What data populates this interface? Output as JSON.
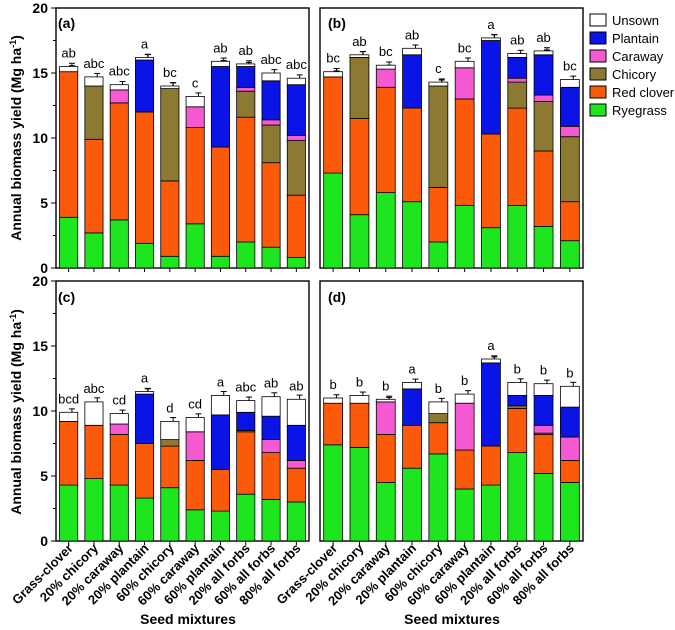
{
  "chart_data": {
    "type": "stacked-bar",
    "ylabel_prefix": "Annual biomass yield (Mg ha",
    "ylabel_sup": "-1",
    "ylabel_suffix": ")",
    "xlabel": "Seed mixtures",
    "ylim": [
      0,
      20
    ],
    "yticks": [
      "0",
      "5",
      "10",
      "15",
      "20"
    ],
    "categories": [
      "Grass-clover",
      "20% chicory",
      "20% caraway",
      "20% plantain",
      "60% chicory",
      "60% caraway",
      "60% plantain",
      "20% all forbs",
      "60% all forbs",
      "80% all forbs"
    ],
    "components": [
      "Ryegrass",
      "Red clover",
      "Chicory",
      "Caraway",
      "Plantain",
      "Unsown"
    ],
    "legend": [
      {
        "name": "Unsown",
        "color": "#ffffff"
      },
      {
        "name": "Plantain",
        "color": "#0a14e6"
      },
      {
        "name": "Caraway",
        "color": "#f55ad2"
      },
      {
        "name": "Chicory",
        "color": "#8c7a32"
      },
      {
        "name": "Red clover",
        "color": "#fa5a0a"
      },
      {
        "name": "Ryegrass",
        "color": "#1ee61e"
      }
    ],
    "panels": [
      {
        "label": "(a)",
        "letters": [
          "ab",
          "abc",
          "abc",
          "a",
          "bc",
          "c",
          "ab",
          "ab",
          "abc",
          "abc"
        ],
        "values": [
          [
            3.9,
            11.2,
            0,
            0,
            0,
            0.4
          ],
          [
            2.7,
            7.2,
            4.1,
            0,
            0,
            0.7
          ],
          [
            3.7,
            9.0,
            0,
            1.0,
            0,
            0.4
          ],
          [
            1.9,
            10.1,
            0,
            0,
            4.0,
            0.2
          ],
          [
            0.9,
            5.8,
            7.1,
            0,
            0,
            0.2
          ],
          [
            3.4,
            7.4,
            0,
            1.6,
            0,
            0.8
          ],
          [
            0.9,
            8.4,
            0,
            0,
            6.2,
            0.4
          ],
          [
            2.0,
            9.6,
            2.0,
            0.3,
            1.6,
            0.2
          ],
          [
            1.6,
            6.5,
            2.9,
            0.4,
            3.0,
            0.6
          ],
          [
            0.8,
            4.8,
            4.2,
            0.4,
            3.9,
            0.5
          ]
        ]
      },
      {
        "label": "(b)",
        "letters": [
          "bc",
          "ab",
          "bc",
          "ab",
          "c",
          "bc",
          "a",
          "ab",
          "ab",
          "bc"
        ],
        "values": [
          [
            7.3,
            7.4,
            0,
            0,
            0,
            0.4
          ],
          [
            4.1,
            7.4,
            4.7,
            0,
            0,
            0.2
          ],
          [
            5.8,
            8.1,
            0,
            1.4,
            0,
            0.3
          ],
          [
            5.1,
            7.2,
            0,
            0,
            4.1,
            0.5
          ],
          [
            2.0,
            4.2,
            7.8,
            0,
            0,
            0.3
          ],
          [
            4.8,
            8.2,
            0,
            2.4,
            0,
            0.5
          ],
          [
            3.1,
            7.2,
            0,
            0,
            7.2,
            0.2
          ],
          [
            4.8,
            7.5,
            2.0,
            0.3,
            1.6,
            0.3
          ],
          [
            3.2,
            5.8,
            3.8,
            0.5,
            3.1,
            0.3
          ],
          [
            2.1,
            3.0,
            5.0,
            0.8,
            3.0,
            0.6
          ]
        ]
      },
      {
        "label": "(c)",
        "letters": [
          "bcd",
          "abc",
          "cd",
          "a",
          "d",
          "cd",
          "a",
          "abc",
          "ab",
          "ab"
        ],
        "values": [
          [
            4.3,
            4.9,
            0,
            0,
            0,
            0.7
          ],
          [
            4.8,
            4.1,
            0,
            0,
            0,
            1.8
          ],
          [
            4.3,
            3.9,
            0,
            0.8,
            0,
            0.8
          ],
          [
            3.3,
            4.2,
            0,
            0,
            3.8,
            0.2
          ],
          [
            4.1,
            3.2,
            0.5,
            0,
            0,
            1.4
          ],
          [
            2.4,
            3.8,
            0,
            2.2,
            0,
            1.1
          ],
          [
            2.3,
            3.2,
            0,
            0,
            4.2,
            1.5
          ],
          [
            3.6,
            4.8,
            0,
            0.1,
            1.4,
            0.9
          ],
          [
            3.2,
            3.6,
            0,
            1.0,
            1.8,
            1.5
          ],
          [
            3.0,
            2.6,
            0,
            0.6,
            2.7,
            2.0
          ]
        ]
      },
      {
        "label": "(d)",
        "letters": [
          "b",
          "b",
          "b",
          "a",
          "b",
          "b",
          "a",
          "b",
          "b",
          "b"
        ],
        "values": [
          [
            7.4,
            3.2,
            0,
            0,
            0,
            0.4
          ],
          [
            7.2,
            3.4,
            0,
            0,
            0,
            0.6
          ],
          [
            4.5,
            3.7,
            0,
            2.5,
            0,
            0.2
          ],
          [
            5.6,
            3.3,
            0,
            0,
            2.8,
            0.5
          ],
          [
            6.7,
            2.4,
            0.7,
            0,
            0,
            0.9
          ],
          [
            4.0,
            3.0,
            0,
            3.6,
            0,
            0.7
          ],
          [
            4.3,
            3.0,
            0,
            0,
            6.4,
            0.3
          ],
          [
            6.8,
            3.4,
            0.2,
            0,
            0.8,
            1.0
          ],
          [
            5.2,
            3.0,
            0.1,
            0.6,
            2.3,
            0.9
          ],
          [
            4.5,
            1.7,
            0,
            1.8,
            2.3,
            1.6
          ]
        ]
      }
    ]
  }
}
